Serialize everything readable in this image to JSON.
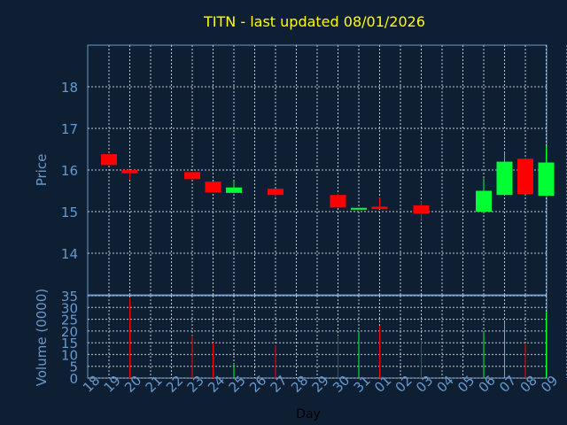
{
  "chart_data": {
    "type": "candlestick",
    "title": "TITN - last updated 08/01/2026",
    "xlabel": "Day",
    "colors": {
      "up": "#00ff33",
      "down": "#ff0000",
      "background": "#0f1f33",
      "title": "#ffff00",
      "axis_text": "#6699cc",
      "grid": "#c0c8d0"
    },
    "grid": true,
    "x_ticks": [
      "18",
      "19",
      "20",
      "21",
      "22",
      "23",
      "24",
      "25",
      "26",
      "27",
      "28",
      "29",
      "30",
      "31",
      "01",
      "02",
      "03",
      "04",
      "05",
      "06",
      "07",
      "08",
      "09"
    ],
    "price_panel": {
      "ylabel": "Price",
      "ylim": [
        13,
        19
      ],
      "y_ticks": [
        "14",
        "15",
        "16",
        "17",
        "18"
      ]
    },
    "volume_panel": {
      "ylabel": "Volume (0000)",
      "ylim": [
        0,
        35
      ],
      "y_ticks": [
        "0",
        "5",
        "10",
        "15",
        "20",
        "25",
        "30",
        "35"
      ]
    },
    "candles": [
      {
        "day": "18",
        "open": 16.38,
        "close": 16.12,
        "high": 16.38,
        "low": 16.12,
        "volume": 0
      },
      {
        "day": "19",
        "open": 16.0,
        "close": 15.92,
        "high": 16.0,
        "low": 15.78,
        "volume": 34
      },
      {
        "day": "22",
        "open": 15.95,
        "close": 15.78,
        "high": 15.95,
        "low": 15.78,
        "volume": 18
      },
      {
        "day": "23",
        "open": 15.72,
        "close": 15.46,
        "high": 15.72,
        "low": 15.46,
        "volume": 15
      },
      {
        "day": "24",
        "open": 15.45,
        "close": 15.58,
        "high": 15.72,
        "low": 15.45,
        "volume": 6
      },
      {
        "day": "26",
        "open": 15.55,
        "close": 15.4,
        "high": 15.55,
        "low": 15.36,
        "volume": 14
      },
      {
        "day": "29",
        "open": 15.4,
        "close": 15.1,
        "high": 15.43,
        "low": 15.1,
        "volume": 18
      },
      {
        "day": "30",
        "open": 15.07,
        "close": 15.09,
        "high": 15.09,
        "low": 15.07,
        "volume": 20
      },
      {
        "day": "31",
        "open": 15.12,
        "close": 15.06,
        "high": 15.33,
        "low": 15.06,
        "volume": 22
      },
      {
        "day": "02",
        "open": 15.15,
        "close": 14.95,
        "high": 15.25,
        "low": 14.8,
        "volume": 16
      },
      {
        "day": "05",
        "open": 15.0,
        "close": 15.5,
        "high": 15.8,
        "low": 15.0,
        "volume": 20
      },
      {
        "day": "06",
        "open": 15.4,
        "close": 16.2,
        "high": 16.43,
        "low": 15.4,
        "volume": 24
      },
      {
        "day": "07",
        "open": 16.27,
        "close": 15.42,
        "high": 16.27,
        "low": 15.42,
        "volume": 15
      },
      {
        "day": "08",
        "open": 15.38,
        "close": 16.18,
        "high": 16.58,
        "low": 15.38,
        "volume": 28
      }
    ]
  }
}
